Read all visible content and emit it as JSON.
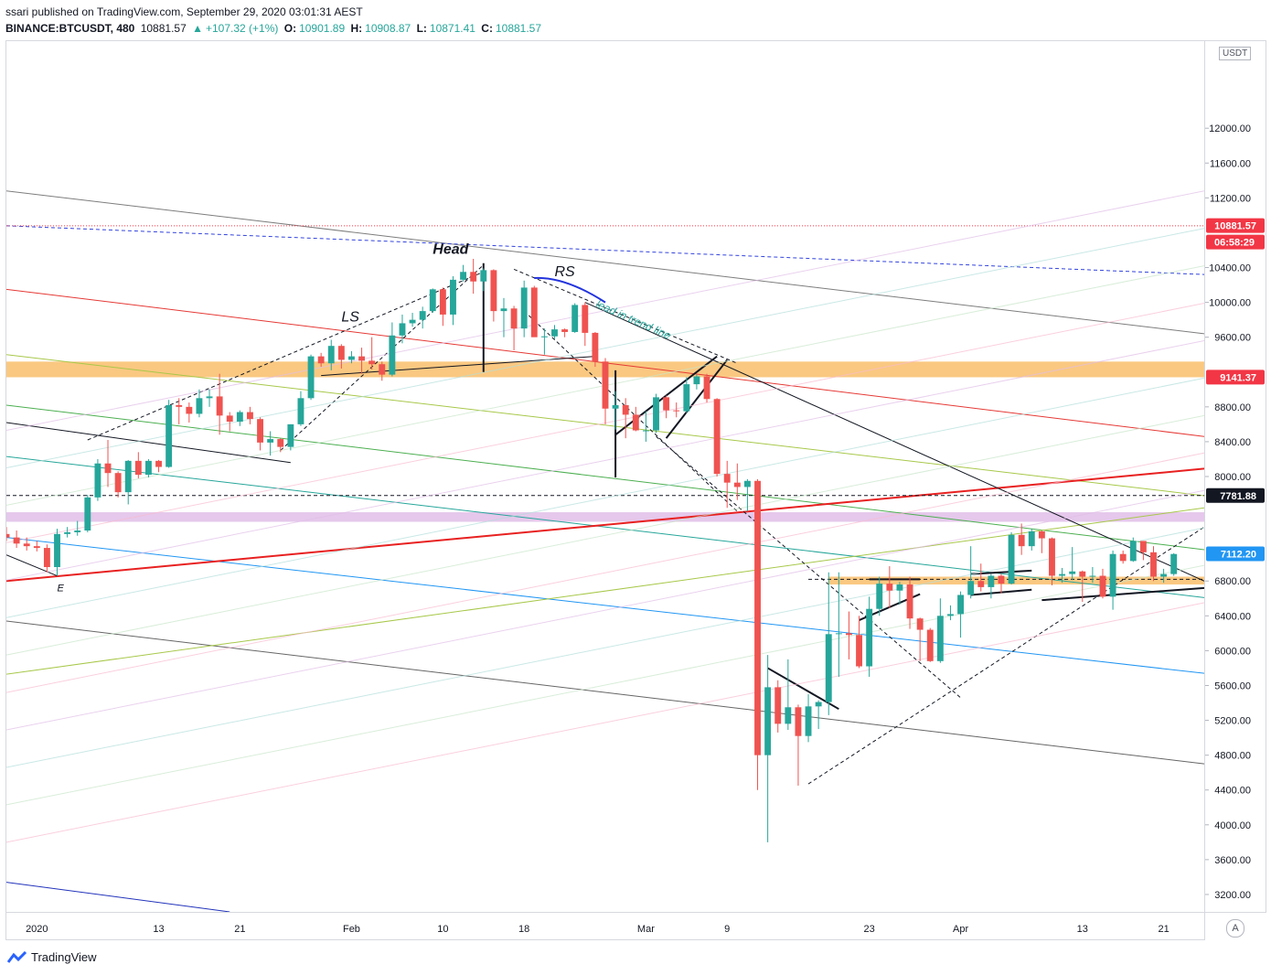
{
  "header": {
    "publisher_line": "ssari published on TradingView.com, September 29, 2020 03:01:31 AEST",
    "symbol": "BINANCE:BTCUSDT, 480",
    "last": "10881.57",
    "change": "+107.32 (+1%)",
    "o_label": "O:",
    "o_value": "10901.89",
    "h_label": "H:",
    "h_value": "10908.87",
    "l_label": "L:",
    "l_value": "10871.41",
    "c_label": "C:",
    "c_value": "10881.57"
  },
  "footer": {
    "brand": "TradingView"
  },
  "axis": {
    "currency": "USDT",
    "auto_label": "A"
  },
  "colors": {
    "up": "#26a69a",
    "down": "#ef5350",
    "zone_orange": "#f9be6b",
    "zone_purple": "#e1bee7",
    "price_tag": "#f23645",
    "blue_tag": "#2962ff",
    "red_line": "#e82020"
  },
  "chart_data": {
    "type": "candlestick",
    "y_scale": "linear",
    "ylim": [
      3000,
      13000
    ],
    "y_ticks": [
      3200,
      3600,
      4000,
      4400,
      4800,
      5200,
      5600,
      6000,
      6400,
      6800,
      7200,
      7600,
      8000,
      8400,
      8800,
      9200,
      9600,
      10000,
      10400,
      10800,
      11200,
      11600,
      12000
    ],
    "y_tick_labels": {
      "3200": "3200.00",
      "3600": "3600.00",
      "4000": "4000.00",
      "4400": "4400.00",
      "4800": "4800.00",
      "5200": "5200.00",
      "5600": "5600.00",
      "6000": "6000.00",
      "6400": "6400.00",
      "6800": "6800.00",
      "8000": "8000.00",
      "8400": "8400.00",
      "8800": "8800.00",
      "9600": "9600.00",
      "10000": "10000.00",
      "10400": "10400.00",
      "11200": "11200.00",
      "11600": "11600.00",
      "12000": "12000.00"
    },
    "x_range": [
      "2019-12-29",
      "2020-04-25"
    ],
    "x_ticks": [
      {
        "date": "2020-01-01",
        "label": "2020"
      },
      {
        "date": "2020-01-13",
        "label": "13"
      },
      {
        "date": "2020-01-21",
        "label": "21"
      },
      {
        "date": "2020-02-01",
        "label": "Feb"
      },
      {
        "date": "2020-02-10",
        "label": "10"
      },
      {
        "date": "2020-02-18",
        "label": "18"
      },
      {
        "date": "2020-03-01",
        "label": "Mar"
      },
      {
        "date": "2020-03-09",
        "label": "9"
      },
      {
        "date": "2020-03-23",
        "label": "23"
      },
      {
        "date": "2020-04-01",
        "label": "Apr"
      },
      {
        "date": "2020-04-13",
        "label": "13"
      },
      {
        "date": "2020-04-21",
        "label": "21"
      }
    ],
    "price_tags": [
      {
        "value": 10881.57,
        "label": "10881.57",
        "sub": "06:58:29",
        "color": "#f23645"
      },
      {
        "value": 9141.37,
        "label": "9141.37",
        "color": "#f23645"
      },
      {
        "value": 7781.88,
        "label": "7781.88",
        "color": "#131722"
      },
      {
        "value": 7112.2,
        "label": "7112.20",
        "color": "#2196f3"
      }
    ],
    "zones": [
      {
        "from": 9140,
        "to": 9320,
        "color": "#f9be6b"
      },
      {
        "from": 7480,
        "to": 7590,
        "color": "#e1bee7"
      },
      {
        "from": 6760,
        "to": 6850,
        "color": "#f9be6b",
        "start": "2020-03-19"
      }
    ],
    "annotations": [
      {
        "text": "Head",
        "date": "2020-02-09",
        "value": 10560
      },
      {
        "text": "LS",
        "date": "2020-01-31",
        "value": 9780
      },
      {
        "text": "RS",
        "date": "2020-02-21",
        "value": 10300
      },
      {
        "text": "lead in trend line",
        "date": "2020-02-25",
        "value": 9950
      },
      {
        "text": "E",
        "date": "2020-01-03",
        "value": 6680
      }
    ],
    "ohlc": [
      [
        "2019-12-29",
        7340,
        7420,
        7260,
        7300
      ],
      [
        "2019-12-30",
        7300,
        7380,
        7180,
        7230
      ],
      [
        "2019-12-31",
        7230,
        7300,
        7150,
        7200
      ],
      [
        "2020-01-01",
        7200,
        7260,
        7140,
        7180
      ],
      [
        "2020-01-02",
        7180,
        7220,
        6900,
        6960
      ],
      [
        "2020-01-03",
        6960,
        7400,
        6860,
        7340
      ],
      [
        "2020-01-04",
        7340,
        7420,
        7300,
        7360
      ],
      [
        "2020-01-05",
        7360,
        7490,
        7320,
        7380
      ],
      [
        "2020-01-06",
        7380,
        7790,
        7360,
        7760
      ],
      [
        "2020-01-07",
        7760,
        8200,
        7720,
        8150
      ],
      [
        "2020-01-08",
        8150,
        8420,
        7880,
        8040
      ],
      [
        "2020-01-09",
        8040,
        8060,
        7760,
        7820
      ],
      [
        "2020-01-10",
        7820,
        8190,
        7680,
        8180
      ],
      [
        "2020-01-11",
        8180,
        8280,
        7980,
        8020
      ],
      [
        "2020-01-12",
        8020,
        8200,
        7990,
        8180
      ],
      [
        "2020-01-13",
        8180,
        8190,
        8050,
        8110
      ],
      [
        "2020-01-14",
        8110,
        8880,
        8100,
        8820
      ],
      [
        "2020-01-15",
        8820,
        8900,
        8600,
        8800
      ],
      [
        "2020-01-16",
        8800,
        8850,
        8620,
        8720
      ],
      [
        "2020-01-17",
        8720,
        9000,
        8680,
        8900
      ],
      [
        "2020-01-18",
        8900,
        9000,
        8800,
        8920
      ],
      [
        "2020-01-19",
        8920,
        9180,
        8480,
        8700
      ],
      [
        "2020-01-20",
        8700,
        8740,
        8520,
        8630
      ],
      [
        "2020-01-21",
        8630,
        8760,
        8580,
        8740
      ],
      [
        "2020-01-22",
        8740,
        8800,
        8600,
        8660
      ],
      [
        "2020-01-23",
        8660,
        8680,
        8300,
        8390
      ],
      [
        "2020-01-24",
        8390,
        8520,
        8240,
        8430
      ],
      [
        "2020-01-25",
        8430,
        8440,
        8280,
        8340
      ],
      [
        "2020-01-26",
        8340,
        8600,
        8300,
        8600
      ],
      [
        "2020-01-27",
        8600,
        8980,
        8580,
        8900
      ],
      [
        "2020-01-28",
        8900,
        9400,
        8880,
        9380
      ],
      [
        "2020-01-29",
        9380,
        9420,
        9260,
        9300
      ],
      [
        "2020-01-30",
        9300,
        9570,
        9220,
        9500
      ],
      [
        "2020-01-31",
        9500,
        9520,
        9240,
        9340
      ],
      [
        "2020-02-01",
        9340,
        9440,
        9300,
        9380
      ],
      [
        "2020-02-02",
        9380,
        9480,
        9180,
        9330
      ],
      [
        "2020-02-03",
        9330,
        9600,
        9230,
        9290
      ],
      [
        "2020-02-04",
        9290,
        9320,
        9100,
        9170
      ],
      [
        "2020-02-05",
        9170,
        9770,
        9150,
        9620
      ],
      [
        "2020-02-06",
        9620,
        9860,
        9530,
        9760
      ],
      [
        "2020-02-07",
        9760,
        9880,
        9720,
        9800
      ],
      [
        "2020-02-08",
        9800,
        9950,
        9700,
        9900
      ],
      [
        "2020-02-09",
        9900,
        10160,
        9880,
        10150
      ],
      [
        "2020-02-10",
        10150,
        10170,
        9730,
        9860
      ],
      [
        "2020-02-11",
        9860,
        10300,
        9740,
        10260
      ],
      [
        "2020-02-12",
        10260,
        10430,
        10240,
        10350
      ],
      [
        "2020-02-13",
        10350,
        10500,
        10100,
        10240
      ],
      [
        "2020-02-14",
        10240,
        10390,
        10130,
        10370
      ],
      [
        "2020-02-15",
        10370,
        10380,
        9780,
        9900
      ],
      [
        "2020-02-16",
        9900,
        10050,
        9600,
        9930
      ],
      [
        "2020-02-17",
        9930,
        9960,
        9450,
        9700
      ],
      [
        "2020-02-18",
        9700,
        10250,
        9600,
        10170
      ],
      [
        "2020-02-19",
        10170,
        10190,
        9640,
        9600
      ],
      [
        "2020-02-20",
        9600,
        9700,
        9400,
        9610
      ],
      [
        "2020-02-21",
        9610,
        9740,
        9580,
        9690
      ],
      [
        "2020-02-22",
        9690,
        9700,
        9600,
        9660
      ],
      [
        "2020-02-23",
        9660,
        9990,
        9650,
        9970
      ],
      [
        "2020-02-24",
        9970,
        10000,
        9500,
        9650
      ],
      [
        "2020-02-25",
        9650,
        9660,
        9260,
        9320
      ],
      [
        "2020-02-26",
        9320,
        9360,
        8600,
        8780
      ],
      [
        "2020-02-27",
        8780,
        8980,
        8540,
        8820
      ],
      [
        "2020-02-28",
        8820,
        8900,
        8440,
        8710
      ],
      [
        "2020-02-29",
        8710,
        8800,
        8520,
        8530
      ],
      [
        "2020-03-01",
        8530,
        8750,
        8400,
        8530
      ],
      [
        "2020-03-02",
        8530,
        8950,
        8500,
        8910
      ],
      [
        "2020-03-03",
        8910,
        8930,
        8670,
        8760
      ],
      [
        "2020-03-04",
        8760,
        8850,
        8680,
        8750
      ],
      [
        "2020-03-05",
        8750,
        9140,
        8730,
        9060
      ],
      [
        "2020-03-06",
        9060,
        9170,
        9000,
        9150
      ],
      [
        "2020-03-07",
        9150,
        9180,
        8850,
        8890
      ],
      [
        "2020-03-08",
        8890,
        8900,
        8000,
        8030
      ],
      [
        "2020-03-09",
        8030,
        8180,
        7640,
        7930
      ],
      [
        "2020-03-10",
        7930,
        8150,
        7730,
        7880
      ],
      [
        "2020-03-11",
        7880,
        7970,
        7600,
        7950
      ],
      [
        "2020-03-12",
        7950,
        7970,
        4400,
        4800
      ],
      [
        "2020-03-13",
        4800,
        5950,
        3800,
        5580
      ],
      [
        "2020-03-14",
        5580,
        5660,
        5060,
        5160
      ],
      [
        "2020-03-15",
        5160,
        5900,
        5090,
        5350
      ],
      [
        "2020-03-16",
        5350,
        5380,
        4450,
        5020
      ],
      [
        "2020-03-17",
        5020,
        5500,
        4950,
        5360
      ],
      [
        "2020-03-18",
        5360,
        5430,
        5100,
        5410
      ],
      [
        "2020-03-19",
        5410,
        6900,
        5260,
        6190
      ],
      [
        "2020-03-20",
        6190,
        6900,
        5700,
        6200
      ],
      [
        "2020-03-21",
        6200,
        6450,
        5900,
        6180
      ],
      [
        "2020-03-22",
        6180,
        6400,
        5800,
        5820
      ],
      [
        "2020-03-23",
        5820,
        6620,
        5700,
        6480
      ],
      [
        "2020-03-24",
        6480,
        6850,
        6400,
        6770
      ],
      [
        "2020-03-25",
        6770,
        6970,
        6490,
        6690
      ],
      [
        "2020-03-26",
        6690,
        6790,
        6530,
        6760
      ],
      [
        "2020-03-27",
        6760,
        6850,
        6250,
        6370
      ],
      [
        "2020-03-28",
        6370,
        6380,
        5880,
        6240
      ],
      [
        "2020-03-29",
        6240,
        6260,
        5870,
        5880
      ],
      [
        "2020-03-30",
        5880,
        6600,
        5860,
        6400
      ],
      [
        "2020-03-31",
        6400,
        6520,
        6350,
        6420
      ],
      [
        "2020-04-01",
        6420,
        6680,
        6150,
        6640
      ],
      [
        "2020-04-02",
        6640,
        7200,
        6600,
        6800
      ],
      [
        "2020-04-03",
        6800,
        7000,
        6680,
        6730
      ],
      [
        "2020-04-04",
        6730,
        6880,
        6600,
        6860
      ],
      [
        "2020-04-05",
        6860,
        6880,
        6660,
        6770
      ],
      [
        "2020-04-06",
        6770,
        7360,
        6760,
        7330
      ],
      [
        "2020-04-07",
        7330,
        7460,
        7100,
        7200
      ],
      [
        "2020-04-08",
        7200,
        7400,
        7150,
        7370
      ],
      [
        "2020-04-09",
        7370,
        7380,
        7120,
        7290
      ],
      [
        "2020-04-10",
        7290,
        7300,
        6750,
        6860
      ],
      [
        "2020-04-11",
        6860,
        6950,
        6780,
        6880
      ],
      [
        "2020-04-12",
        6880,
        7190,
        6810,
        6910
      ],
      [
        "2020-04-13",
        6910,
        6920,
        6560,
        6850
      ],
      [
        "2020-04-14",
        6850,
        6960,
        6780,
        6860
      ],
      [
        "2020-04-15",
        6860,
        6940,
        6600,
        6620
      ],
      [
        "2020-04-16",
        6620,
        7150,
        6470,
        7110
      ],
      [
        "2020-04-17",
        7110,
        7150,
        7000,
        7030
      ],
      [
        "2020-04-18",
        7030,
        7300,
        7020,
        7260
      ],
      [
        "2020-04-19",
        7260,
        7260,
        7040,
        7130
      ],
      [
        "2020-04-20",
        7130,
        7200,
        6800,
        6850
      ],
      [
        "2020-04-21",
        6850,
        6940,
        6780,
        6880
      ],
      [
        "2020-04-22",
        6880,
        7120,
        6860,
        7110
      ]
    ]
  }
}
